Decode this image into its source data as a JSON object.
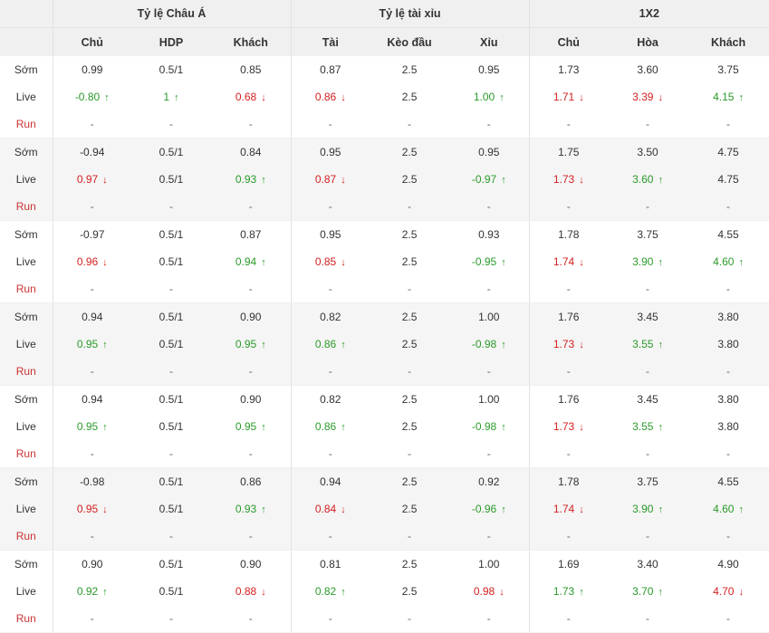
{
  "header": {
    "groups": [
      {
        "title": "Tỷ lệ Châu Á",
        "columns": [
          "Chủ",
          "HDP",
          "Khách"
        ]
      },
      {
        "title": "Tỷ lệ tài xỉu",
        "columns": [
          "Tài",
          "Kèo đầu",
          "Xỉu"
        ]
      },
      {
        "title": "1X2",
        "columns": [
          "Chủ",
          "Hòa",
          "Khách"
        ]
      }
    ]
  },
  "row_labels": {
    "early": "Sớm",
    "live": "Live",
    "run": "Run"
  },
  "arrow_glyphs": {
    "up": "↑",
    "down": "↓"
  },
  "colors": {
    "up": "#2a9a2a",
    "down": "#d42020",
    "run_label": "#cc3333"
  },
  "empty_cell": "-",
  "bookmakers": [
    {
      "early": [
        "0.99",
        "0.5/1",
        "0.85",
        "0.87",
        "2.5",
        "0.95",
        "1.73",
        "3.60",
        "3.75"
      ],
      "live": [
        {
          "v": "-0.80",
          "t": "up"
        },
        {
          "v": "1",
          "t": "up"
        },
        {
          "v": "0.68",
          "t": "down"
        },
        {
          "v": "0.86",
          "t": "down"
        },
        {
          "v": "2.5",
          "t": ""
        },
        {
          "v": "1.00",
          "t": "up"
        },
        {
          "v": "1.71",
          "t": "down"
        },
        {
          "v": "3.39",
          "t": "down"
        },
        {
          "v": "4.15",
          "t": "up"
        }
      ]
    },
    {
      "early": [
        "-0.94",
        "0.5/1",
        "0.84",
        "0.95",
        "2.5",
        "0.95",
        "1.75",
        "3.50",
        "4.75"
      ],
      "live": [
        {
          "v": "0.97",
          "t": "down"
        },
        {
          "v": "0.5/1",
          "t": ""
        },
        {
          "v": "0.93",
          "t": "up"
        },
        {
          "v": "0.87",
          "t": "down"
        },
        {
          "v": "2.5",
          "t": ""
        },
        {
          "v": "-0.97",
          "t": "up"
        },
        {
          "v": "1.73",
          "t": "down"
        },
        {
          "v": "3.60",
          "t": "up"
        },
        {
          "v": "4.75",
          "t": ""
        }
      ]
    },
    {
      "early": [
        "-0.97",
        "0.5/1",
        "0.87",
        "0.95",
        "2.5",
        "0.93",
        "1.78",
        "3.75",
        "4.55"
      ],
      "live": [
        {
          "v": "0.96",
          "t": "down"
        },
        {
          "v": "0.5/1",
          "t": ""
        },
        {
          "v": "0.94",
          "t": "up"
        },
        {
          "v": "0.85",
          "t": "down"
        },
        {
          "v": "2.5",
          "t": ""
        },
        {
          "v": "-0.95",
          "t": "up"
        },
        {
          "v": "1.74",
          "t": "down"
        },
        {
          "v": "3.90",
          "t": "up"
        },
        {
          "v": "4.60",
          "t": "up"
        }
      ]
    },
    {
      "early": [
        "0.94",
        "0.5/1",
        "0.90",
        "0.82",
        "2.5",
        "1.00",
        "1.76",
        "3.45",
        "3.80"
      ],
      "live": [
        {
          "v": "0.95",
          "t": "up"
        },
        {
          "v": "0.5/1",
          "t": ""
        },
        {
          "v": "0.95",
          "t": "up"
        },
        {
          "v": "0.86",
          "t": "up"
        },
        {
          "v": "2.5",
          "t": ""
        },
        {
          "v": "-0.98",
          "t": "up"
        },
        {
          "v": "1.73",
          "t": "down"
        },
        {
          "v": "3.55",
          "t": "up"
        },
        {
          "v": "3.80",
          "t": ""
        }
      ]
    },
    {
      "early": [
        "0.94",
        "0.5/1",
        "0.90",
        "0.82",
        "2.5",
        "1.00",
        "1.76",
        "3.45",
        "3.80"
      ],
      "live": [
        {
          "v": "0.95",
          "t": "up"
        },
        {
          "v": "0.5/1",
          "t": ""
        },
        {
          "v": "0.95",
          "t": "up"
        },
        {
          "v": "0.86",
          "t": "up"
        },
        {
          "v": "2.5",
          "t": ""
        },
        {
          "v": "-0.98",
          "t": "up"
        },
        {
          "v": "1.73",
          "t": "down"
        },
        {
          "v": "3.55",
          "t": "up"
        },
        {
          "v": "3.80",
          "t": ""
        }
      ]
    },
    {
      "early": [
        "-0.98",
        "0.5/1",
        "0.86",
        "0.94",
        "2.5",
        "0.92",
        "1.78",
        "3.75",
        "4.55"
      ],
      "live": [
        {
          "v": "0.95",
          "t": "down"
        },
        {
          "v": "0.5/1",
          "t": ""
        },
        {
          "v": "0.93",
          "t": "up"
        },
        {
          "v": "0.84",
          "t": "down"
        },
        {
          "v": "2.5",
          "t": ""
        },
        {
          "v": "-0.96",
          "t": "up"
        },
        {
          "v": "1.74",
          "t": "down"
        },
        {
          "v": "3.90",
          "t": "up"
        },
        {
          "v": "4.60",
          "t": "up"
        }
      ]
    },
    {
      "early": [
        "0.90",
        "0.5/1",
        "0.90",
        "0.81",
        "2.5",
        "1.00",
        "1.69",
        "3.40",
        "4.90"
      ],
      "live": [
        {
          "v": "0.92",
          "t": "up"
        },
        {
          "v": "0.5/1",
          "t": ""
        },
        {
          "v": "0.88",
          "t": "down"
        },
        {
          "v": "0.82",
          "t": "up"
        },
        {
          "v": "2.5",
          "t": ""
        },
        {
          "v": "0.98",
          "t": "down"
        },
        {
          "v": "1.73",
          "t": "up"
        },
        {
          "v": "3.70",
          "t": "up"
        },
        {
          "v": "4.70",
          "t": "down"
        }
      ]
    }
  ]
}
